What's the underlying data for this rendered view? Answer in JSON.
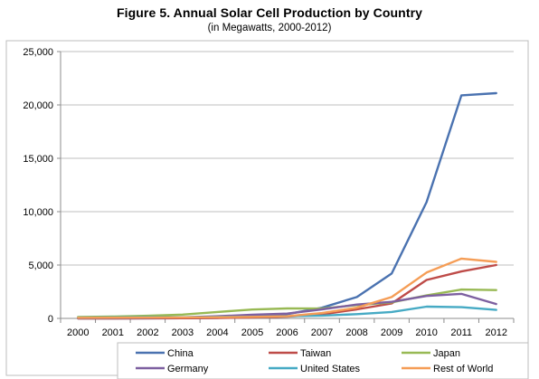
{
  "header": {
    "title": "Figure 5. Annual Solar Cell Production by Country",
    "subtitle": "(in Megawatts, 2000-2012)"
  },
  "chart_data": {
    "type": "line",
    "title": "Figure 5. Annual Solar Cell Production by Country",
    "subtitle": "(in Megawatts, 2000-2012)",
    "xlabel": "",
    "ylabel": "",
    "x": [
      "2000",
      "2001",
      "2002",
      "2003",
      "2004",
      "2005",
      "2006",
      "2007",
      "2008",
      "2009",
      "2010",
      "2011",
      "2012"
    ],
    "ylim": [
      0,
      25000
    ],
    "yticks": [
      0,
      5000,
      10000,
      15000,
      20000,
      25000
    ],
    "ytick_labels": [
      "0",
      "5,000",
      "10,000",
      "15,000",
      "20,000",
      "25,000"
    ],
    "grid": true,
    "legend_position": "bottom",
    "series": [
      {
        "name": "China",
        "color": "#4a72b0",
        "values": [
          3,
          4,
          10,
          13,
          50,
          200,
          400,
          1000,
          2000,
          4200,
          10900,
          20900,
          21100
        ]
      },
      {
        "name": "Taiwan",
        "color": "#be4b48",
        "values": [
          0,
          0,
          10,
          20,
          40,
          90,
          170,
          370,
          850,
          1400,
          3600,
          4400,
          5000
        ]
      },
      {
        "name": "Japan",
        "color": "#98b954",
        "values": [
          130,
          170,
          250,
          360,
          600,
          830,
          930,
          920,
          1250,
          1500,
          2150,
          2700,
          2650
        ]
      },
      {
        "name": "Germany",
        "color": "#7d60a0",
        "values": [
          25,
          35,
          55,
          100,
          200,
          340,
          450,
          850,
          1300,
          1550,
          2100,
          2300,
          1350
        ]
      },
      {
        "name": "United States",
        "color": "#46aac4",
        "values": [
          75,
          100,
          120,
          100,
          140,
          150,
          200,
          260,
          400,
          600,
          1100,
          1050,
          800
        ]
      },
      {
        "name": "Rest of World",
        "color": "#f59d56",
        "values": [
          60,
          70,
          80,
          90,
          110,
          140,
          200,
          500,
          1000,
          2000,
          4300,
          5600,
          5300
        ]
      }
    ]
  }
}
